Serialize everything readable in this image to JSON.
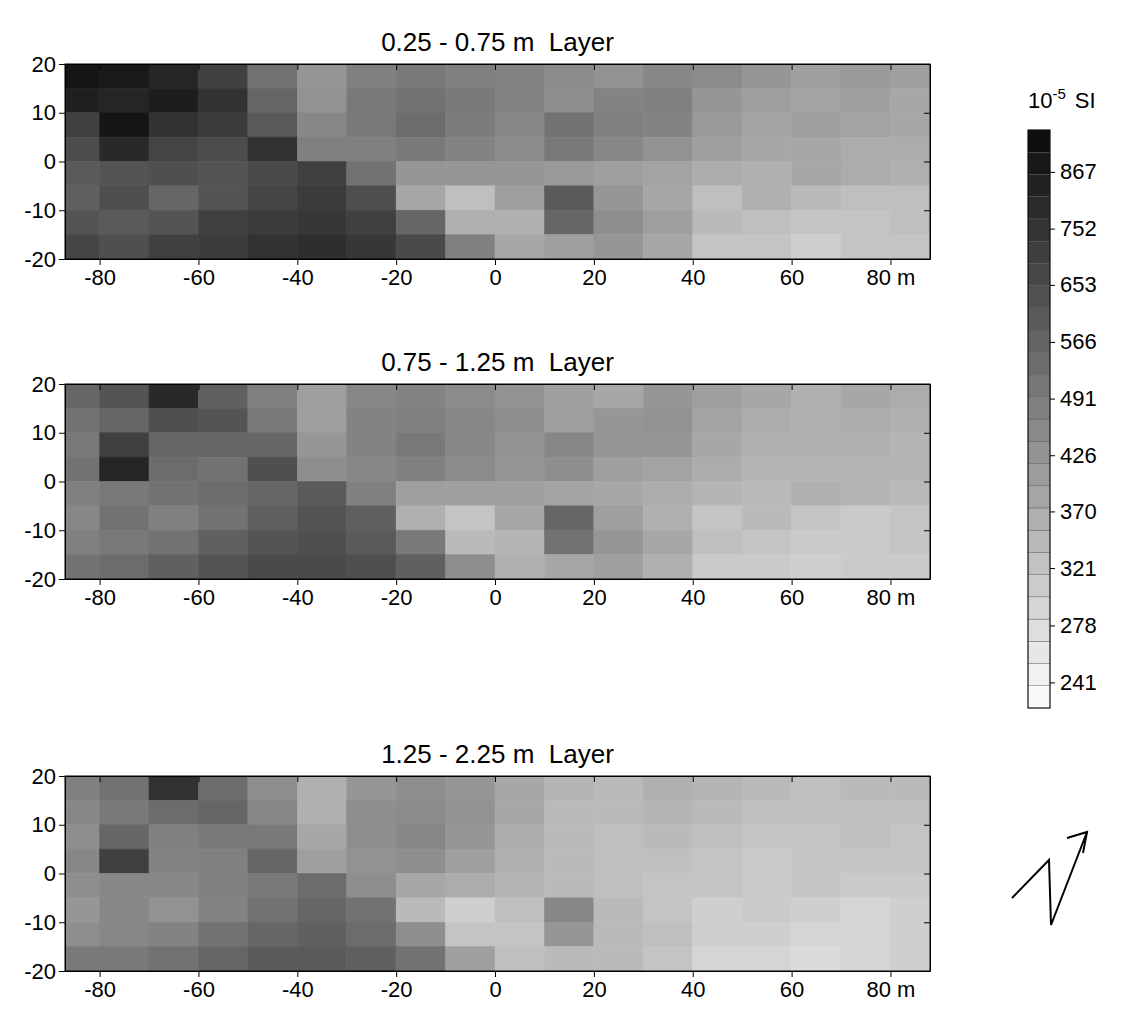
{
  "chart_data": [
    {
      "type": "heatmap",
      "title": "0.25 - 0.75 m  Layer",
      "xlim": [
        -87,
        88
      ],
      "ylim": [
        -20,
        20
      ],
      "xticks": [
        -80,
        -60,
        -40,
        -20,
        0,
        20,
        40,
        60,
        {
          "value": 80,
          "label": "80 m"
        }
      ],
      "yticks": [
        -20,
        -10,
        0,
        10,
        20
      ],
      "x_edges": [
        -90,
        -80,
        -70,
        -60,
        -50,
        -40,
        -30,
        -20,
        -10,
        0,
        10,
        20,
        30,
        40,
        50,
        60,
        70,
        80,
        90
      ],
      "y_edges": [
        20,
        15,
        10,
        5,
        0,
        -5,
        -10,
        -15,
        -20
      ],
      "cells": [
        [
          900,
          880,
          820,
          700,
          520,
          420,
          480,
          500,
          480,
          470,
          450,
          430,
          460,
          450,
          420,
          400,
          410,
          400
        ],
        [
          850,
          820,
          860,
          760,
          560,
          430,
          500,
          520,
          500,
          470,
          440,
          470,
          480,
          420,
          400,
          390,
          400,
          380
        ],
        [
          700,
          900,
          760,
          720,
          600,
          460,
          500,
          540,
          490,
          460,
          520,
          480,
          470,
          410,
          390,
          400,
          390,
          380
        ],
        [
          650,
          800,
          680,
          650,
          760,
          480,
          480,
          500,
          470,
          450,
          500,
          460,
          430,
          400,
          380,
          380,
          370,
          370
        ],
        [
          600,
          620,
          640,
          620,
          660,
          700,
          520,
          420,
          420,
          420,
          410,
          400,
          390,
          370,
          360,
          380,
          370,
          360
        ],
        [
          580,
          640,
          560,
          620,
          680,
          720,
          640,
          380,
          330,
          400,
          600,
          420,
          380,
          330,
          360,
          340,
          330,
          330
        ],
        [
          620,
          600,
          620,
          700,
          720,
          740,
          700,
          560,
          360,
          360,
          560,
          440,
          400,
          340,
          330,
          320,
          320,
          330
        ],
        [
          680,
          640,
          700,
          720,
          760,
          780,
          740,
          660,
          480,
          380,
          400,
          420,
          380,
          320,
          320,
          300,
          320,
          320
        ]
      ]
    },
    {
      "type": "heatmap",
      "title": "0.75 - 1.25 m  Layer",
      "xlim": [
        -87,
        88
      ],
      "ylim": [
        -20,
        20
      ],
      "xticks": [
        -80,
        -60,
        -40,
        -20,
        0,
        20,
        40,
        60,
        {
          "value": 80,
          "label": "80 m"
        }
      ],
      "yticks": [
        -20,
        -10,
        0,
        10,
        20
      ],
      "x_edges": [
        -90,
        -80,
        -70,
        -60,
        -50,
        -40,
        -30,
        -20,
        -10,
        0,
        10,
        20,
        30,
        40,
        50,
        60,
        70,
        80,
        90
      ],
      "y_edges": [
        20,
        15,
        10,
        5,
        0,
        -5,
        -10,
        -15,
        -20
      ],
      "cells": [
        [
          560,
          620,
          800,
          580,
          480,
          400,
          460,
          470,
          450,
          430,
          400,
          380,
          420,
          400,
          380,
          360,
          380,
          370
        ],
        [
          520,
          560,
          640,
          620,
          500,
          400,
          470,
          480,
          460,
          440,
          400,
          420,
          430,
          390,
          370,
          360,
          370,
          360
        ],
        [
          500,
          700,
          560,
          560,
          560,
          420,
          470,
          500,
          460,
          430,
          460,
          420,
          420,
          380,
          360,
          360,
          360,
          350
        ],
        [
          520,
          820,
          540,
          520,
          640,
          440,
          460,
          480,
          450,
          420,
          440,
          400,
          390,
          370,
          350,
          350,
          350,
          350
        ],
        [
          480,
          500,
          520,
          540,
          560,
          600,
          480,
          400,
          400,
          400,
          390,
          380,
          370,
          350,
          340,
          360,
          350,
          340
        ],
        [
          460,
          520,
          480,
          520,
          580,
          620,
          580,
          360,
          320,
          380,
          560,
          400,
          360,
          320,
          340,
          320,
          310,
          320
        ],
        [
          480,
          500,
          520,
          580,
          620,
          640,
          600,
          500,
          340,
          350,
          520,
          420,
          380,
          330,
          320,
          310,
          310,
          320
        ],
        [
          520,
          540,
          580,
          620,
          660,
          660,
          640,
          580,
          440,
          360,
          380,
          400,
          360,
          310,
          310,
          300,
          310,
          310
        ]
      ]
    },
    {
      "type": "heatmap",
      "title": "1.25 - 2.25 m  Layer",
      "xlim": [
        -87,
        88
      ],
      "ylim": [
        -20,
        20
      ],
      "xticks": [
        -80,
        -60,
        -40,
        -20,
        0,
        20,
        40,
        60,
        {
          "value": 80,
          "label": "80 m"
        }
      ],
      "yticks": [
        -20,
        -10,
        0,
        10,
        20
      ],
      "x_edges": [
        -90,
        -80,
        -70,
        -60,
        -50,
        -40,
        -30,
        -20,
        -10,
        0,
        10,
        20,
        30,
        40,
        50,
        60,
        70,
        80,
        90
      ],
      "y_edges": [
        20,
        15,
        10,
        5,
        0,
        -5,
        -10,
        -15,
        -20
      ],
      "cells": [
        [
          480,
          520,
          760,
          540,
          440,
          360,
          420,
          440,
          420,
          380,
          350,
          340,
          360,
          350,
          340,
          330,
          340,
          340
        ],
        [
          460,
          500,
          540,
          560,
          460,
          360,
          440,
          450,
          430,
          380,
          340,
          340,
          350,
          340,
          330,
          330,
          330,
          330
        ],
        [
          440,
          560,
          480,
          500,
          500,
          380,
          440,
          460,
          420,
          370,
          340,
          330,
          340,
          330,
          320,
          320,
          330,
          320
        ],
        [
          460,
          700,
          470,
          480,
          560,
          400,
          430,
          440,
          400,
          360,
          340,
          330,
          330,
          320,
          310,
          320,
          320,
          320
        ],
        [
          440,
          460,
          460,
          480,
          500,
          540,
          440,
          380,
          370,
          350,
          340,
          330,
          320,
          320,
          310,
          320,
          310,
          310
        ],
        [
          420,
          460,
          430,
          470,
          520,
          560,
          520,
          340,
          300,
          330,
          460,
          340,
          320,
          300,
          310,
          300,
          290,
          300
        ],
        [
          440,
          460,
          470,
          520,
          560,
          580,
          540,
          440,
          320,
          320,
          420,
          340,
          330,
          300,
          300,
          290,
          290,
          300
        ],
        [
          500,
          500,
          520,
          560,
          600,
          600,
          580,
          520,
          400,
          330,
          340,
          340,
          320,
          290,
          290,
          280,
          290,
          300
        ]
      ]
    }
  ],
  "colorbar": {
    "range": [
      226,
      963
    ],
    "log": true,
    "ticks": [
      241,
      278,
      321,
      370,
      426,
      491,
      566,
      653,
      752,
      867
    ],
    "label": "10",
    "exponent": "-5",
    "unit": "SI"
  }
}
